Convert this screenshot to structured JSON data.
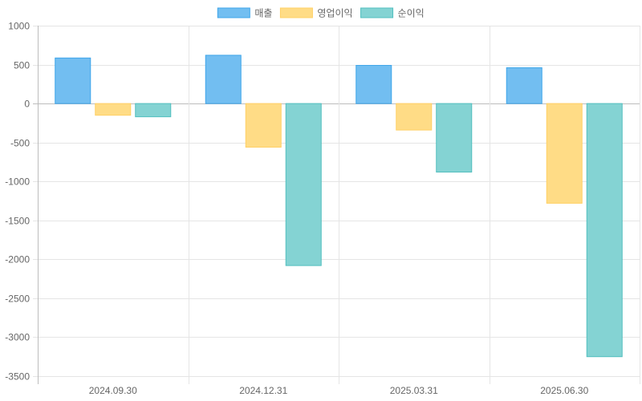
{
  "chart_data": {
    "type": "bar",
    "categories": [
      "2024.09.30",
      "2024.12.31",
      "2025.03.31",
      "2025.06.30"
    ],
    "series": [
      {
        "name": "매출",
        "values": [
          585,
          620,
          490,
          460
        ],
        "fill": "#72bef1",
        "stroke": "#3fa6ea"
      },
      {
        "name": "영업이익",
        "values": [
          -150,
          -560,
          -340,
          -1280
        ],
        "fill": "#ffdc86",
        "stroke": "#ffd065"
      },
      {
        "name": "순이익",
        "values": [
          -170,
          -2080,
          -880,
          -3250
        ],
        "fill": "#84d3d3",
        "stroke": "#52bfbf"
      }
    ],
    "ylim": [
      -3500,
      1000
    ],
    "yticks": [
      1000,
      500,
      0,
      -500,
      -1000,
      -1500,
      -2000,
      -2500,
      -3000,
      -3500
    ],
    "grid": true,
    "legend_position": "top-center"
  }
}
